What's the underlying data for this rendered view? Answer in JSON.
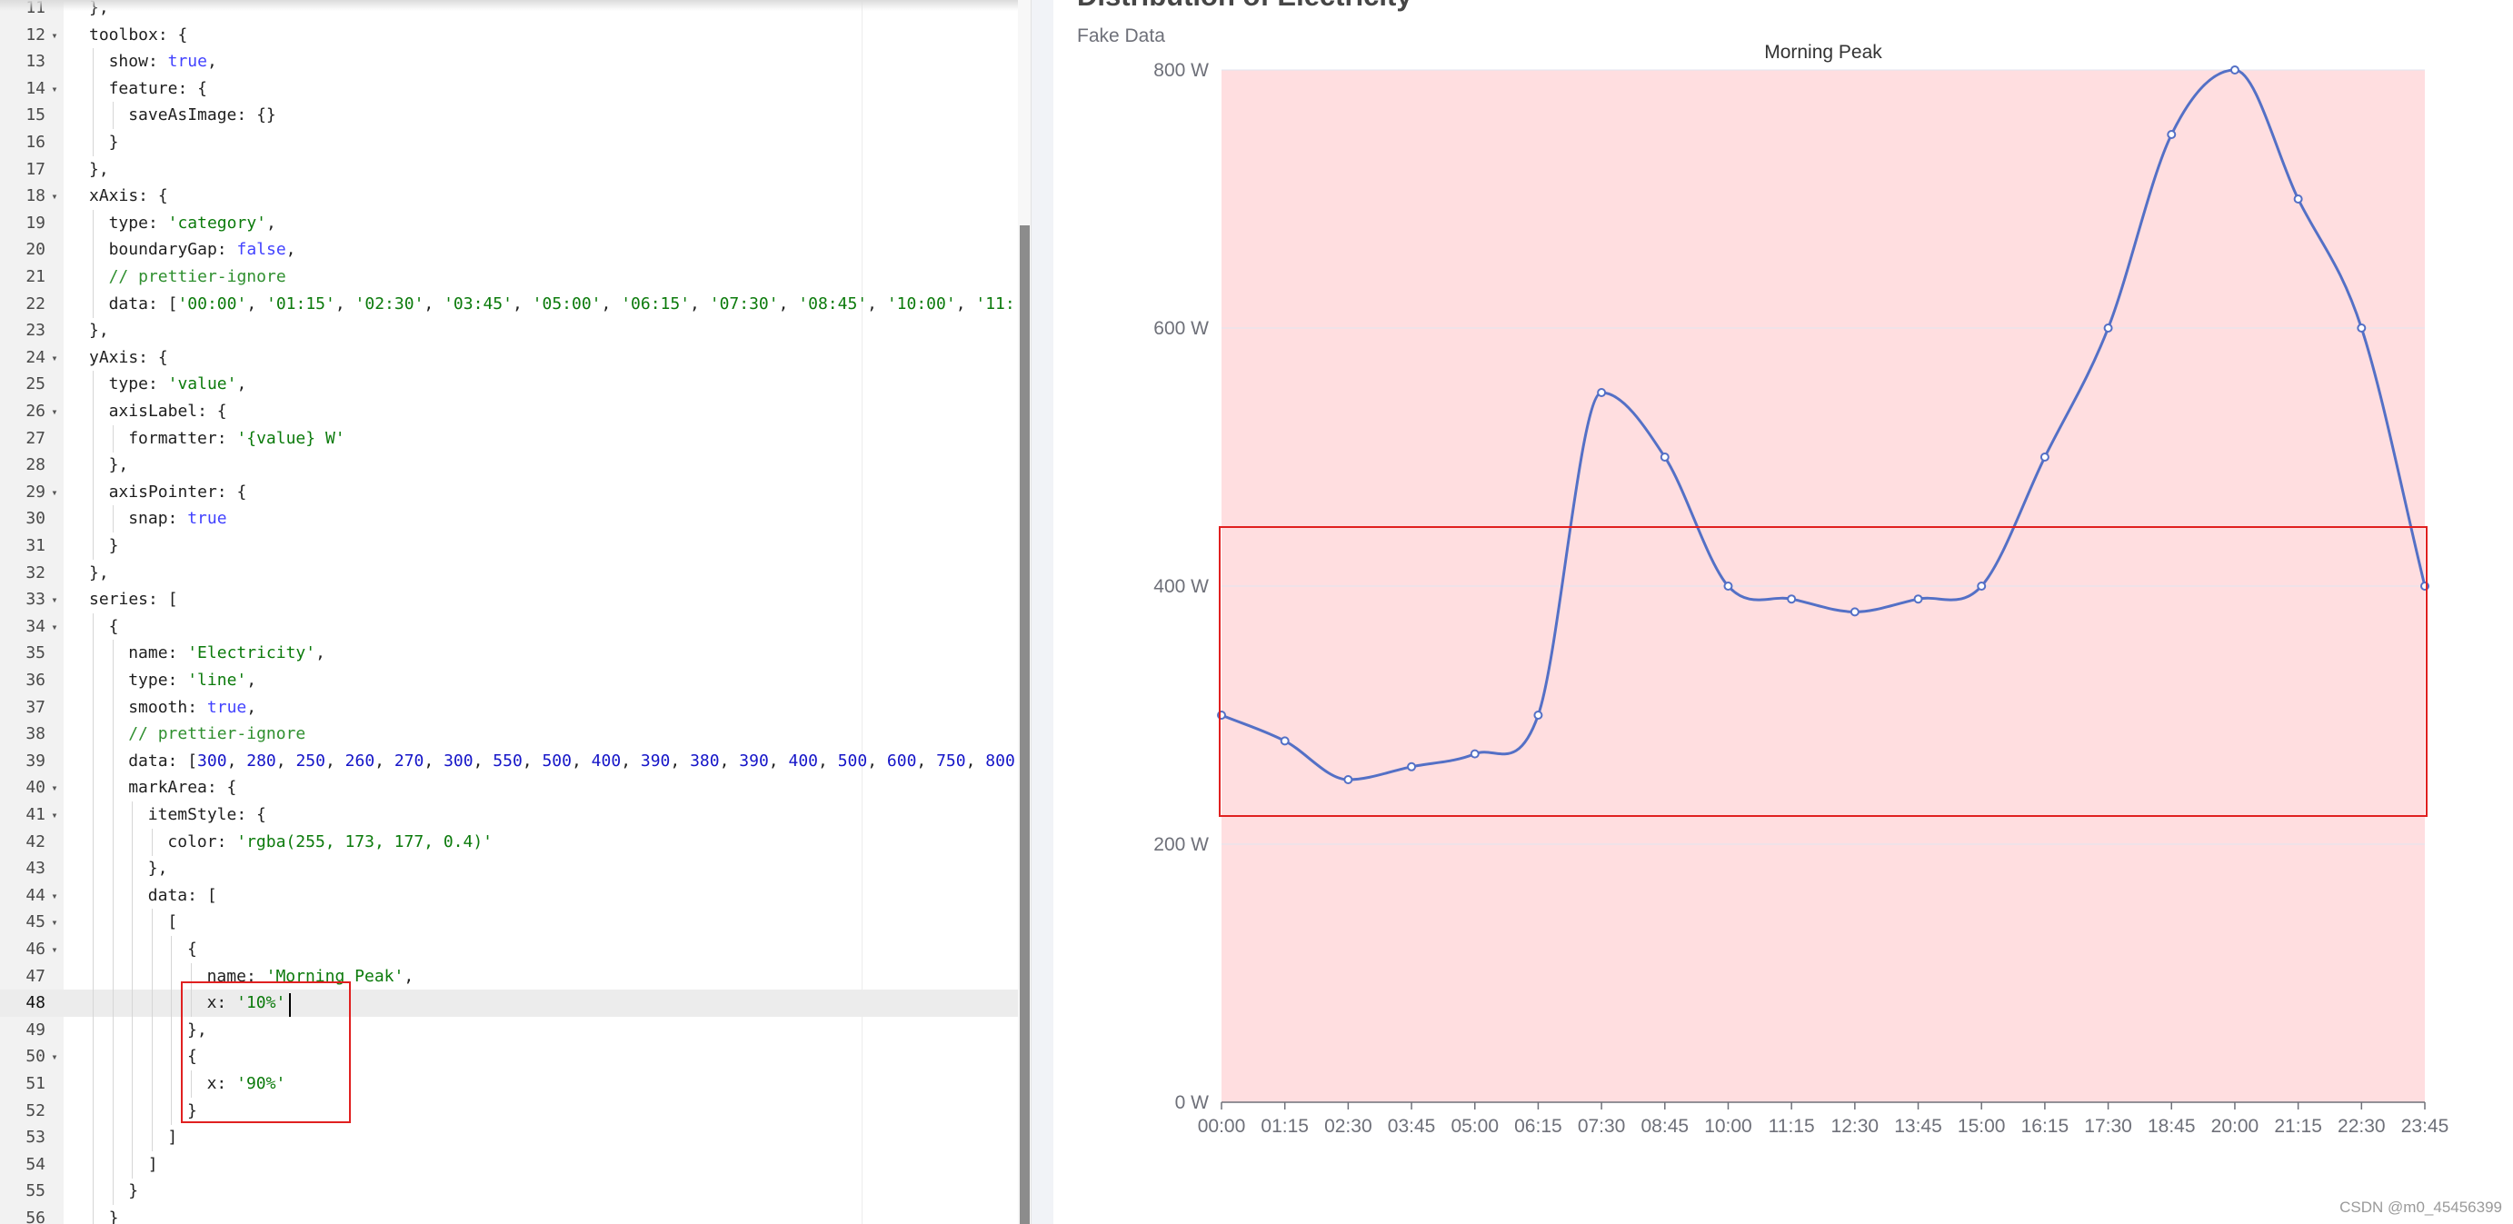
{
  "editor": {
    "lines": [
      {
        "num": "11",
        "fold": "",
        "depth": 0,
        "tokens": [
          {
            "t": "},",
            "c": "p"
          }
        ]
      },
      {
        "num": "12",
        "fold": "▾",
        "depth": 0,
        "tokens": [
          {
            "t": "toolbox: {",
            "c": "k"
          }
        ]
      },
      {
        "num": "13",
        "fold": "",
        "depth": 1,
        "tokens": [
          {
            "t": "show: ",
            "c": "k"
          },
          {
            "t": "true",
            "c": "b"
          },
          {
            "t": ",",
            "c": "p"
          }
        ]
      },
      {
        "num": "14",
        "fold": "▾",
        "depth": 1,
        "tokens": [
          {
            "t": "feature: {",
            "c": "k"
          }
        ]
      },
      {
        "num": "15",
        "fold": "",
        "depth": 2,
        "tokens": [
          {
            "t": "saveAsImage: {}",
            "c": "k"
          }
        ]
      },
      {
        "num": "16",
        "fold": "",
        "depth": 1,
        "tokens": [
          {
            "t": "}",
            "c": "p"
          }
        ]
      },
      {
        "num": "17",
        "fold": "",
        "depth": 0,
        "tokens": [
          {
            "t": "},",
            "c": "p"
          }
        ]
      },
      {
        "num": "18",
        "fold": "▾",
        "depth": 0,
        "tokens": [
          {
            "t": "xAxis: {",
            "c": "k"
          }
        ]
      },
      {
        "num": "19",
        "fold": "",
        "depth": 1,
        "tokens": [
          {
            "t": "type: ",
            "c": "k"
          },
          {
            "t": "'category'",
            "c": "s"
          },
          {
            "t": ",",
            "c": "p"
          }
        ]
      },
      {
        "num": "20",
        "fold": "",
        "depth": 1,
        "tokens": [
          {
            "t": "boundaryGap: ",
            "c": "k"
          },
          {
            "t": "false",
            "c": "b"
          },
          {
            "t": ",",
            "c": "p"
          }
        ]
      },
      {
        "num": "21",
        "fold": "",
        "depth": 1,
        "tokens": [
          {
            "t": "// prettier-ignore",
            "c": "c"
          }
        ]
      },
      {
        "num": "22",
        "fold": "",
        "depth": 1,
        "tokens": [
          {
            "t": "data: [",
            "c": "k"
          },
          {
            "t": "'00:00'",
            "c": "s"
          },
          {
            "t": ", ",
            "c": "p"
          },
          {
            "t": "'01:15'",
            "c": "s"
          },
          {
            "t": ", ",
            "c": "p"
          },
          {
            "t": "'02:30'",
            "c": "s"
          },
          {
            "t": ", ",
            "c": "p"
          },
          {
            "t": "'03:45'",
            "c": "s"
          },
          {
            "t": ", ",
            "c": "p"
          },
          {
            "t": "'05:00'",
            "c": "s"
          },
          {
            "t": ", ",
            "c": "p"
          },
          {
            "t": "'06:15'",
            "c": "s"
          },
          {
            "t": ", ",
            "c": "p"
          },
          {
            "t": "'07:30'",
            "c": "s"
          },
          {
            "t": ", ",
            "c": "p"
          },
          {
            "t": "'08:45'",
            "c": "s"
          },
          {
            "t": ", ",
            "c": "p"
          },
          {
            "t": "'10:00'",
            "c": "s"
          },
          {
            "t": ", ",
            "c": "p"
          },
          {
            "t": "'11:",
            "c": "s"
          }
        ]
      },
      {
        "num": "23",
        "fold": "",
        "depth": 0,
        "tokens": [
          {
            "t": "},",
            "c": "p"
          }
        ]
      },
      {
        "num": "24",
        "fold": "▾",
        "depth": 0,
        "tokens": [
          {
            "t": "yAxis: {",
            "c": "k"
          }
        ]
      },
      {
        "num": "25",
        "fold": "",
        "depth": 1,
        "tokens": [
          {
            "t": "type: ",
            "c": "k"
          },
          {
            "t": "'value'",
            "c": "s"
          },
          {
            "t": ",",
            "c": "p"
          }
        ]
      },
      {
        "num": "26",
        "fold": "▾",
        "depth": 1,
        "tokens": [
          {
            "t": "axisLabel: {",
            "c": "k"
          }
        ]
      },
      {
        "num": "27",
        "fold": "",
        "depth": 2,
        "tokens": [
          {
            "t": "formatter: ",
            "c": "k"
          },
          {
            "t": "'{value} W'",
            "c": "s"
          }
        ]
      },
      {
        "num": "28",
        "fold": "",
        "depth": 1,
        "tokens": [
          {
            "t": "},",
            "c": "p"
          }
        ]
      },
      {
        "num": "29",
        "fold": "▾",
        "depth": 1,
        "tokens": [
          {
            "t": "axisPointer: {",
            "c": "k"
          }
        ]
      },
      {
        "num": "30",
        "fold": "",
        "depth": 2,
        "tokens": [
          {
            "t": "snap: ",
            "c": "k"
          },
          {
            "t": "true",
            "c": "b"
          }
        ]
      },
      {
        "num": "31",
        "fold": "",
        "depth": 1,
        "tokens": [
          {
            "t": "}",
            "c": "p"
          }
        ]
      },
      {
        "num": "32",
        "fold": "",
        "depth": 0,
        "tokens": [
          {
            "t": "},",
            "c": "p"
          }
        ]
      },
      {
        "num": "33",
        "fold": "▾",
        "depth": 0,
        "tokens": [
          {
            "t": "series: [",
            "c": "k"
          }
        ]
      },
      {
        "num": "34",
        "fold": "▾",
        "depth": 1,
        "tokens": [
          {
            "t": "{",
            "c": "p"
          }
        ]
      },
      {
        "num": "35",
        "fold": "",
        "depth": 2,
        "tokens": [
          {
            "t": "name: ",
            "c": "k"
          },
          {
            "t": "'Electricity'",
            "c": "s"
          },
          {
            "t": ",",
            "c": "p"
          }
        ]
      },
      {
        "num": "36",
        "fold": "",
        "depth": 2,
        "tokens": [
          {
            "t": "type: ",
            "c": "k"
          },
          {
            "t": "'line'",
            "c": "s"
          },
          {
            "t": ",",
            "c": "p"
          }
        ]
      },
      {
        "num": "37",
        "fold": "",
        "depth": 2,
        "tokens": [
          {
            "t": "smooth: ",
            "c": "k"
          },
          {
            "t": "true",
            "c": "b"
          },
          {
            "t": ",",
            "c": "p"
          }
        ]
      },
      {
        "num": "38",
        "fold": "",
        "depth": 2,
        "tokens": [
          {
            "t": "// prettier-ignore",
            "c": "c"
          }
        ]
      },
      {
        "num": "39",
        "fold": "",
        "depth": 2,
        "tokens": [
          {
            "t": "data: [",
            "c": "k"
          },
          {
            "t": "300",
            "c": "n"
          },
          {
            "t": ", ",
            "c": "p"
          },
          {
            "t": "280",
            "c": "n"
          },
          {
            "t": ", ",
            "c": "p"
          },
          {
            "t": "250",
            "c": "n"
          },
          {
            "t": ", ",
            "c": "p"
          },
          {
            "t": "260",
            "c": "n"
          },
          {
            "t": ", ",
            "c": "p"
          },
          {
            "t": "270",
            "c": "n"
          },
          {
            "t": ", ",
            "c": "p"
          },
          {
            "t": "300",
            "c": "n"
          },
          {
            "t": ", ",
            "c": "p"
          },
          {
            "t": "550",
            "c": "n"
          },
          {
            "t": ", ",
            "c": "p"
          },
          {
            "t": "500",
            "c": "n"
          },
          {
            "t": ", ",
            "c": "p"
          },
          {
            "t": "400",
            "c": "n"
          },
          {
            "t": ", ",
            "c": "p"
          },
          {
            "t": "390",
            "c": "n"
          },
          {
            "t": ", ",
            "c": "p"
          },
          {
            "t": "380",
            "c": "n"
          },
          {
            "t": ", ",
            "c": "p"
          },
          {
            "t": "390",
            "c": "n"
          },
          {
            "t": ", ",
            "c": "p"
          },
          {
            "t": "400",
            "c": "n"
          },
          {
            "t": ", ",
            "c": "p"
          },
          {
            "t": "500",
            "c": "n"
          },
          {
            "t": ", ",
            "c": "p"
          },
          {
            "t": "600",
            "c": "n"
          },
          {
            "t": ", ",
            "c": "p"
          },
          {
            "t": "750",
            "c": "n"
          },
          {
            "t": ", ",
            "c": "p"
          },
          {
            "t": "800",
            "c": "n"
          }
        ]
      },
      {
        "num": "40",
        "fold": "▾",
        "depth": 2,
        "tokens": [
          {
            "t": "markArea: {",
            "c": "k"
          }
        ]
      },
      {
        "num": "41",
        "fold": "▾",
        "depth": 3,
        "tokens": [
          {
            "t": "itemStyle: {",
            "c": "k"
          }
        ]
      },
      {
        "num": "42",
        "fold": "",
        "depth": 4,
        "tokens": [
          {
            "t": "color: ",
            "c": "k"
          },
          {
            "t": "'rgba(255, 173, 177, 0.4)'",
            "c": "s"
          }
        ]
      },
      {
        "num": "43",
        "fold": "",
        "depth": 3,
        "tokens": [
          {
            "t": "},",
            "c": "p"
          }
        ]
      },
      {
        "num": "44",
        "fold": "▾",
        "depth": 3,
        "tokens": [
          {
            "t": "data: [",
            "c": "k"
          }
        ]
      },
      {
        "num": "45",
        "fold": "▾",
        "depth": 4,
        "tokens": [
          {
            "t": "[",
            "c": "p"
          }
        ]
      },
      {
        "num": "46",
        "fold": "▾",
        "depth": 5,
        "tokens": [
          {
            "t": "{",
            "c": "p"
          }
        ]
      },
      {
        "num": "47",
        "fold": "",
        "depth": 6,
        "tokens": [
          {
            "t": "name: ",
            "c": "k"
          },
          {
            "t": "'Morning Peak'",
            "c": "s"
          },
          {
            "t": ",",
            "c": "p"
          }
        ]
      },
      {
        "num": "48",
        "fold": "",
        "depth": 6,
        "active": true,
        "tokens": [
          {
            "t": "x: ",
            "c": "k"
          },
          {
            "t": "'10%'",
            "c": "s"
          }
        ]
      },
      {
        "num": "49",
        "fold": "",
        "depth": 5,
        "tokens": [
          {
            "t": "},",
            "c": "p"
          }
        ]
      },
      {
        "num": "50",
        "fold": "▾",
        "depth": 5,
        "tokens": [
          {
            "t": "{",
            "c": "p"
          }
        ]
      },
      {
        "num": "51",
        "fold": "",
        "depth": 6,
        "tokens": [
          {
            "t": "x: ",
            "c": "k"
          },
          {
            "t": "'90%'",
            "c": "s"
          }
        ]
      },
      {
        "num": "52",
        "fold": "",
        "depth": 5,
        "tokens": [
          {
            "t": "}",
            "c": "p"
          }
        ]
      },
      {
        "num": "53",
        "fold": "",
        "depth": 4,
        "tokens": [
          {
            "t": "]",
            "c": "p"
          }
        ]
      },
      {
        "num": "54",
        "fold": "",
        "depth": 3,
        "tokens": [
          {
            "t": "]",
            "c": "p"
          }
        ]
      },
      {
        "num": "55",
        "fold": "",
        "depth": 2,
        "tokens": [
          {
            "t": "}",
            "c": "p"
          }
        ]
      },
      {
        "num": "56",
        "fold": "",
        "depth": 1,
        "tokens": [
          {
            "t": "}",
            "c": "p"
          }
        ]
      }
    ]
  },
  "chart": {
    "title": "Distribution of Electricity",
    "subtitle": "Fake Data",
    "watermark": "CSDN @m0_45456399"
  },
  "chart_data": {
    "type": "line",
    "title": "Distribution of Electricity",
    "subtitle": "Fake Data",
    "series": [
      {
        "name": "",
        "values": [
          300,
          280,
          250,
          260,
          270,
          300,
          550,
          500,
          400,
          390,
          380,
          390,
          400,
          500,
          600,
          750,
          800,
          700,
          600,
          400
        ]
      }
    ],
    "categories": [
      "00:00",
      "01:15",
      "02:30",
      "03:45",
      "05:00",
      "06:15",
      "07:30",
      "08:45",
      "10:00",
      "11:15",
      "12:30",
      "13:45",
      "15:00",
      "16:15",
      "17:30",
      "18:45",
      "20:00",
      "21:15",
      "22:30",
      "23:45"
    ],
    "y_ticks": [
      "0 W",
      "200 W",
      "400 W",
      "600 W",
      "800 W"
    ],
    "ylim": [
      0,
      800
    ],
    "smooth": true,
    "line_color": "#5470c6",
    "mark_area": {
      "name": "Morning Peak",
      "color": "rgba(255, 173, 177, 0.4)"
    },
    "grid": "horizontal"
  }
}
